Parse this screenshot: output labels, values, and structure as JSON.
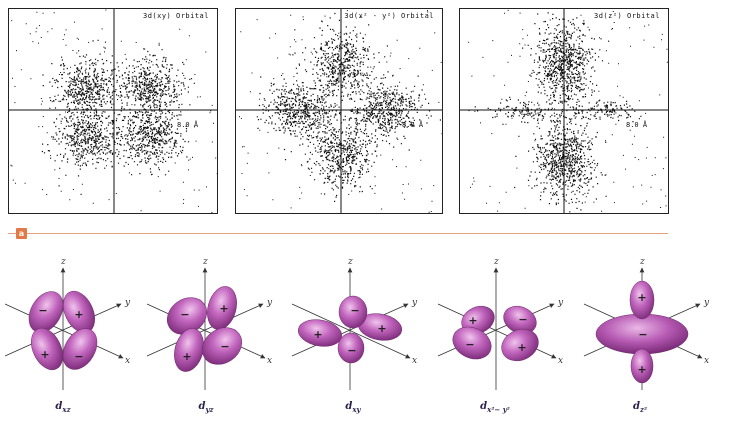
{
  "panels": [
    {
      "title": "3d(xy) Orbital",
      "scale": "8.0 Å"
    },
    {
      "title": "3d(x² - y²) Orbital",
      "scale": "8.0 Å"
    },
    {
      "title": "3d(z²) Orbital",
      "scale": "8.0 Å"
    }
  ],
  "tag": "a",
  "axes": {
    "x": "x",
    "y": "y",
    "z": "z"
  },
  "signs": {
    "plus": "+",
    "minus": "−"
  },
  "orbitals": [
    {
      "name": "xz",
      "base": "d",
      "sub": "xz",
      "sup": ""
    },
    {
      "name": "yz",
      "base": "d",
      "sub": "yz",
      "sup": ""
    },
    {
      "name": "xy",
      "base": "d",
      "sub": "xy",
      "sup": ""
    },
    {
      "name": "x2-y2",
      "base": "d",
      "sub": "x²− y²",
      "sup": ""
    },
    {
      "name": "z2",
      "base": "d",
      "sub": "z²",
      "sup": ""
    }
  ],
  "colors": {
    "lobe": "#b65ab3",
    "lobe_light": "#e7b0e2",
    "lobe_dark": "#7a2a78",
    "accent": "#e07a47"
  }
}
